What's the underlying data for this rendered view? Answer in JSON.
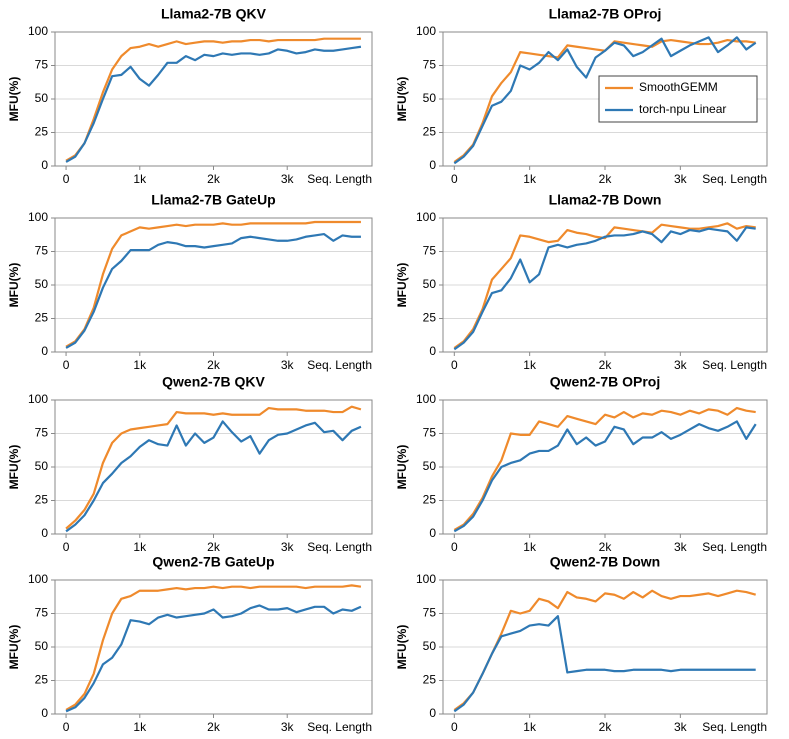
{
  "chart_data": [
    {
      "type": "line",
      "title": "Llama2-7B QKV",
      "ylabel": "MFU(%)",
      "xlabel": "Seq. Length",
      "x": [
        0,
        125,
        250,
        375,
        500,
        625,
        750,
        875,
        1000,
        1125,
        1250,
        1375,
        1500,
        1625,
        1750,
        1875,
        2000,
        2125,
        2250,
        2375,
        2500,
        2625,
        2750,
        2875,
        3000,
        3125,
        3250,
        3375,
        3500,
        3625,
        3750,
        3875,
        4000
      ],
      "xlim": [
        -150,
        4150
      ],
      "xticks": [
        0,
        {
          "value": 1000,
          "label": "1k"
        },
        {
          "value": 2000,
          "label": "2k"
        },
        {
          "value": 3000,
          "label": "3k"
        }
      ],
      "ylim": [
        0,
        100
      ],
      "yticks": [
        0,
        25,
        50,
        75,
        100
      ],
      "grid": true,
      "series": [
        {
          "color": "#ef8a2c",
          "values": [
            4,
            8,
            17,
            35,
            55,
            72,
            82,
            88,
            89,
            91,
            89,
            91,
            93,
            91,
            92,
            93,
            93,
            92,
            93,
            93,
            94,
            94,
            93,
            94,
            94,
            94,
            94,
            94,
            95,
            95,
            95,
            95,
            95
          ]
        },
        {
          "color": "#2e78b4",
          "values": [
            3,
            7,
            17,
            32,
            50,
            67,
            68,
            74,
            65,
            60,
            68,
            77,
            77,
            82,
            79,
            83,
            82,
            84,
            83,
            84,
            84,
            83,
            84,
            87,
            86,
            84,
            85,
            87,
            86,
            86,
            87,
            88,
            89
          ]
        }
      ]
    },
    {
      "type": "line",
      "title": "Llama2-7B OProj",
      "ylabel": "MFU(%)",
      "xlabel": "Seq. Length",
      "legend": "center right",
      "x": [
        0,
        125,
        250,
        375,
        500,
        625,
        750,
        875,
        1000,
        1125,
        1250,
        1375,
        1500,
        1625,
        1750,
        1875,
        2000,
        2125,
        2250,
        2375,
        2500,
        2625,
        2750,
        2875,
        3000,
        3125,
        3250,
        3375,
        3500,
        3625,
        3750,
        3875,
        4000
      ],
      "xlim": [
        -150,
        4150
      ],
      "xticks": [
        0,
        {
          "value": 1000,
          "label": "1k"
        },
        {
          "value": 2000,
          "label": "2k"
        },
        {
          "value": 3000,
          "label": "3k"
        }
      ],
      "ylim": [
        0,
        100
      ],
      "yticks": [
        0,
        25,
        50,
        75,
        100
      ],
      "grid": true,
      "series": [
        {
          "name": "SmoothGEMM",
          "color": "#ef8a2c",
          "values": [
            3,
            8,
            16,
            32,
            52,
            62,
            70,
            85,
            84,
            83,
            82,
            81,
            90,
            89,
            88,
            87,
            86,
            93,
            92,
            91,
            90,
            89,
            93,
            94,
            93,
            92,
            91,
            91,
            92,
            94,
            93,
            93,
            92
          ]
        },
        {
          "name": "torch-npu Linear",
          "color": "#2e78b4",
          "values": [
            2,
            7,
            15,
            30,
            45,
            48,
            56,
            75,
            72,
            77,
            85,
            79,
            87,
            74,
            66,
            81,
            86,
            92,
            90,
            82,
            85,
            90,
            95,
            82,
            86,
            90,
            93,
            96,
            85,
            90,
            96,
            87,
            92
          ]
        }
      ]
    },
    {
      "type": "line",
      "title": "Llama2-7B GateUp",
      "ylabel": "MFU(%)",
      "xlabel": "Seq. Length",
      "x": [
        0,
        125,
        250,
        375,
        500,
        625,
        750,
        875,
        1000,
        1125,
        1250,
        1375,
        1500,
        1625,
        1750,
        1875,
        2000,
        2125,
        2250,
        2375,
        2500,
        2625,
        2750,
        2875,
        3000,
        3125,
        3250,
        3375,
        3500,
        3625,
        3750,
        3875,
        4000
      ],
      "xlim": [
        -150,
        4150
      ],
      "xticks": [
        0,
        {
          "value": 1000,
          "label": "1k"
        },
        {
          "value": 2000,
          "label": "2k"
        },
        {
          "value": 3000,
          "label": "3k"
        }
      ],
      "ylim": [
        0,
        100
      ],
      "yticks": [
        0,
        25,
        50,
        75,
        100
      ],
      "grid": true,
      "series": [
        {
          "color": "#ef8a2c",
          "values": [
            4,
            8,
            17,
            33,
            58,
            77,
            87,
            90,
            93,
            92,
            93,
            94,
            95,
            94,
            95,
            95,
            95,
            96,
            95,
            95,
            96,
            96,
            96,
            96,
            96,
            96,
            96,
            97,
            97,
            97,
            97,
            97,
            97
          ]
        },
        {
          "color": "#2e78b4",
          "values": [
            3,
            7,
            16,
            30,
            48,
            62,
            68,
            76,
            76,
            76,
            80,
            82,
            81,
            79,
            79,
            78,
            79,
            80,
            81,
            85,
            86,
            85,
            84,
            83,
            83,
            84,
            86,
            87,
            88,
            83,
            87,
            86,
            86
          ]
        }
      ]
    },
    {
      "type": "line",
      "title": "Llama2-7B Down",
      "ylabel": "MFU(%)",
      "xlabel": "Seq. Length",
      "x": [
        0,
        125,
        250,
        375,
        500,
        625,
        750,
        875,
        1000,
        1125,
        1250,
        1375,
        1500,
        1625,
        1750,
        1875,
        2000,
        2125,
        2250,
        2375,
        2500,
        2625,
        2750,
        2875,
        3000,
        3125,
        3250,
        3375,
        3500,
        3625,
        3750,
        3875,
        4000
      ],
      "xlim": [
        -150,
        4150
      ],
      "xticks": [
        0,
        {
          "value": 1000,
          "label": "1k"
        },
        {
          "value": 2000,
          "label": "2k"
        },
        {
          "value": 3000,
          "label": "3k"
        }
      ],
      "ylim": [
        0,
        100
      ],
      "yticks": [
        0,
        25,
        50,
        75,
        100
      ],
      "grid": true,
      "series": [
        {
          "color": "#ef8a2c",
          "values": [
            3,
            8,
            17,
            32,
            54,
            62,
            70,
            87,
            86,
            84,
            82,
            83,
            91,
            89,
            88,
            86,
            85,
            93,
            92,
            91,
            90,
            89,
            95,
            94,
            93,
            92,
            92,
            93,
            94,
            96,
            92,
            94,
            93
          ]
        },
        {
          "color": "#2e78b4",
          "values": [
            2,
            7,
            15,
            30,
            44,
            46,
            55,
            69,
            52,
            58,
            78,
            80,
            78,
            80,
            81,
            83,
            86,
            87,
            87,
            88,
            90,
            88,
            82,
            90,
            88,
            91,
            90,
            92,
            91,
            90,
            83,
            93,
            92
          ]
        }
      ]
    },
    {
      "type": "line",
      "title": "Qwen2-7B QKV",
      "ylabel": "MFU(%)",
      "xlabel": "Seq. Length",
      "x": [
        0,
        125,
        250,
        375,
        500,
        625,
        750,
        875,
        1000,
        1125,
        1250,
        1375,
        1500,
        1625,
        1750,
        1875,
        2000,
        2125,
        2250,
        2375,
        2500,
        2625,
        2750,
        2875,
        3000,
        3125,
        3250,
        3375,
        3500,
        3625,
        3750,
        3875,
        4000
      ],
      "xlim": [
        -150,
        4150
      ],
      "xticks": [
        0,
        {
          "value": 1000,
          "label": "1k"
        },
        {
          "value": 2000,
          "label": "2k"
        },
        {
          "value": 3000,
          "label": "3k"
        }
      ],
      "ylim": [
        0,
        100
      ],
      "yticks": [
        0,
        25,
        50,
        75,
        100
      ],
      "grid": true,
      "series": [
        {
          "color": "#ef8a2c",
          "values": [
            4,
            10,
            18,
            30,
            53,
            68,
            75,
            78,
            79,
            80,
            81,
            82,
            91,
            90,
            90,
            90,
            89,
            90,
            89,
            89,
            89,
            89,
            94,
            93,
            93,
            93,
            92,
            92,
            92,
            91,
            91,
            95,
            93
          ]
        },
        {
          "color": "#2e78b4",
          "values": [
            2,
            7,
            14,
            25,
            38,
            45,
            53,
            58,
            65,
            70,
            67,
            66,
            81,
            66,
            75,
            68,
            72,
            84,
            76,
            69,
            73,
            60,
            70,
            74,
            75,
            78,
            81,
            83,
            76,
            77,
            70,
            77,
            80
          ]
        }
      ]
    },
    {
      "type": "line",
      "title": "Qwen2-7B OProj",
      "ylabel": "MFU(%)",
      "xlabel": "Seq. Length",
      "x": [
        0,
        125,
        250,
        375,
        500,
        625,
        750,
        875,
        1000,
        1125,
        1250,
        1375,
        1500,
        1625,
        1750,
        1875,
        2000,
        2125,
        2250,
        2375,
        2500,
        2625,
        2750,
        2875,
        3000,
        3125,
        3250,
        3375,
        3500,
        3625,
        3750,
        3875,
        4000
      ],
      "xlim": [
        -150,
        4150
      ],
      "xticks": [
        0,
        {
          "value": 1000,
          "label": "1k"
        },
        {
          "value": 2000,
          "label": "2k"
        },
        {
          "value": 3000,
          "label": "3k"
        }
      ],
      "ylim": [
        0,
        100
      ],
      "yticks": [
        0,
        25,
        50,
        75,
        100
      ],
      "grid": true,
      "series": [
        {
          "color": "#ef8a2c",
          "values": [
            3,
            7,
            15,
            27,
            43,
            55,
            75,
            74,
            74,
            84,
            82,
            80,
            88,
            86,
            84,
            82,
            89,
            87,
            91,
            87,
            90,
            89,
            92,
            91,
            89,
            92,
            90,
            93,
            92,
            89,
            94,
            92,
            91
          ]
        },
        {
          "color": "#2e78b4",
          "values": [
            2,
            6,
            13,
            25,
            40,
            50,
            53,
            55,
            60,
            62,
            62,
            66,
            78,
            67,
            72,
            66,
            69,
            80,
            78,
            67,
            72,
            72,
            76,
            71,
            74,
            78,
            82,
            79,
            77,
            80,
            84,
            71,
            82
          ]
        }
      ]
    },
    {
      "type": "line",
      "title": "Qwen2-7B GateUp",
      "ylabel": "MFU(%)",
      "xlabel": "Seq. Length",
      "x": [
        0,
        125,
        250,
        375,
        500,
        625,
        750,
        875,
        1000,
        1125,
        1250,
        1375,
        1500,
        1625,
        1750,
        1875,
        2000,
        2125,
        2250,
        2375,
        2500,
        2625,
        2750,
        2875,
        3000,
        3125,
        3250,
        3375,
        3500,
        3625,
        3750,
        3875,
        4000
      ],
      "xlim": [
        -150,
        4150
      ],
      "xticks": [
        0,
        {
          "value": 1000,
          "label": "1k"
        },
        {
          "value": 2000,
          "label": "2k"
        },
        {
          "value": 3000,
          "label": "3k"
        }
      ],
      "ylim": [
        0,
        100
      ],
      "yticks": [
        0,
        25,
        50,
        75,
        100
      ],
      "grid": true,
      "series": [
        {
          "color": "#ef8a2c",
          "values": [
            3,
            7,
            15,
            30,
            55,
            75,
            86,
            88,
            92,
            92,
            92,
            93,
            94,
            93,
            94,
            94,
            95,
            94,
            95,
            95,
            94,
            95,
            95,
            95,
            95,
            95,
            94,
            95,
            95,
            95,
            95,
            96,
            95
          ]
        },
        {
          "color": "#2e78b4",
          "values": [
            2,
            5,
            12,
            23,
            37,
            42,
            52,
            70,
            69,
            67,
            72,
            74,
            72,
            73,
            74,
            75,
            78,
            72,
            73,
            75,
            79,
            81,
            78,
            78,
            79,
            76,
            78,
            80,
            80,
            75,
            78,
            77,
            80
          ]
        }
      ]
    },
    {
      "type": "line",
      "title": "Qwen2-7B Down",
      "ylabel": "MFU(%)",
      "xlabel": "Seq. Length",
      "x": [
        0,
        125,
        250,
        375,
        500,
        625,
        750,
        875,
        1000,
        1125,
        1250,
        1375,
        1500,
        1625,
        1750,
        1875,
        2000,
        2125,
        2250,
        2375,
        2500,
        2625,
        2750,
        2875,
        3000,
        3125,
        3250,
        3375,
        3500,
        3625,
        3750,
        3875,
        4000
      ],
      "xlim": [
        -150,
        4150
      ],
      "xticks": [
        0,
        {
          "value": 1000,
          "label": "1k"
        },
        {
          "value": 2000,
          "label": "2k"
        },
        {
          "value": 3000,
          "label": "3k"
        }
      ],
      "ylim": [
        0,
        100
      ],
      "yticks": [
        0,
        25,
        50,
        75,
        100
      ],
      "grid": true,
      "series": [
        {
          "color": "#ef8a2c",
          "values": [
            3,
            8,
            16,
            30,
            45,
            60,
            77,
            75,
            77,
            86,
            84,
            79,
            91,
            87,
            86,
            84,
            90,
            89,
            86,
            91,
            87,
            92,
            88,
            86,
            88,
            88,
            89,
            90,
            88,
            90,
            92,
            91,
            89
          ]
        },
        {
          "color": "#2e78b4",
          "values": [
            2,
            7,
            16,
            30,
            45,
            58,
            60,
            62,
            66,
            67,
            66,
            73,
            31,
            32,
            33,
            33,
            33,
            32,
            32,
            33,
            33,
            33,
            33,
            32,
            33,
            33,
            33,
            33,
            33,
            33,
            33,
            33,
            33
          ]
        }
      ]
    }
  ]
}
